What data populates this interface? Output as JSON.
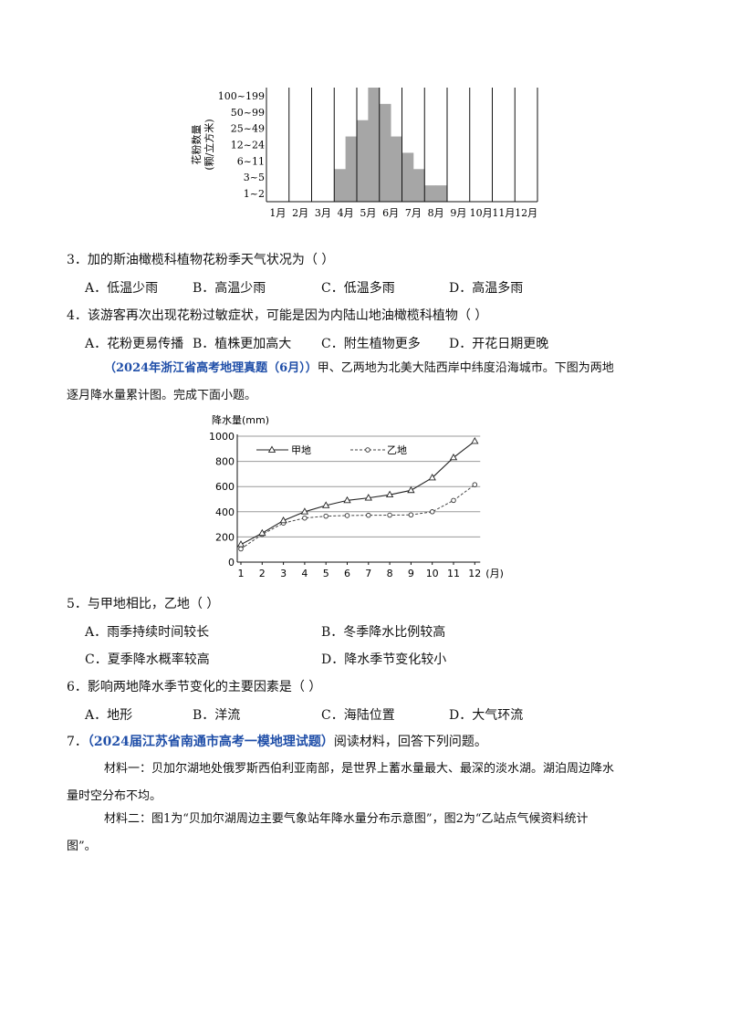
{
  "pollen_chart": {
    "type": "heatmap",
    "ylabel_line1": "花粉数量",
    "ylabel_line2": "(颗/立方米)",
    "y_levels": [
      "100~199",
      "50~99",
      "25~49",
      "12~24",
      "6~11",
      "3~5",
      "1~2"
    ],
    "months": [
      "1月",
      "2月",
      "3月",
      "4月",
      "5月",
      "6月",
      "7月",
      "8月",
      "9月",
      "10月",
      "11月",
      "12月"
    ],
    "half_month_levels": [
      0,
      0,
      0,
      0,
      0,
      0,
      2,
      4,
      5,
      7,
      6,
      4,
      3,
      2,
      1,
      1,
      0,
      0,
      0,
      0,
      0,
      0,
      0,
      0
    ]
  },
  "q3": {
    "stem": "3．加的斯油橄榄科植物花粉季天气状况为（    ）",
    "a": "A．低温少雨",
    "b": "B．高温少雨",
    "c": "C．低温多雨",
    "d": "D．高温多雨"
  },
  "q4": {
    "stem": "4．该游客再次出现花粉过敏症状，可能是因为内陆山地油橄榄科植物（    ）",
    "a": "A．花粉更易传播",
    "b": "B．植株更加高大",
    "c": "C．附生植物更多",
    "d": "D．开花日期更晚"
  },
  "intro56": {
    "source": "（2024年浙江省高考地理真题（6月））",
    "text1": "甲、乙两地为北美大陆西岸中纬度沿海城市。下图为两地",
    "text2": "逐月降水量累计图。完成下面小题。"
  },
  "rain_chart": {
    "type": "line",
    "ylabel": "降水量(mm)",
    "x_unit": "(月)",
    "x": [
      1,
      2,
      3,
      4,
      5,
      6,
      7,
      8,
      9,
      10,
      11,
      12
    ],
    "yticks": [
      0,
      200,
      400,
      600,
      800,
      1000
    ],
    "ylim": [
      0,
      1000
    ],
    "series": [
      {
        "name": "甲地",
        "values": [
          140,
          230,
          330,
          400,
          450,
          490,
          510,
          535,
          570,
          670,
          830,
          960
        ]
      },
      {
        "name": "乙地",
        "values": [
          105,
          220,
          310,
          350,
          365,
          370,
          372,
          373,
          375,
          400,
          490,
          615
        ]
      }
    ]
  },
  "q5": {
    "stem": "5．与甲地相比，乙地（    ）",
    "a": "A．雨季持续时间较长",
    "b": "B．冬季降水比例较高",
    "c": "C．夏季降水概率较高",
    "d": "D．降水季节变化较小"
  },
  "q6": {
    "stem": "6．影响两地降水季节变化的主要因素是（    ）",
    "a": "A．地形",
    "b": "B．洋流",
    "c": "C．海陆位置",
    "d": "D．大气环流"
  },
  "q7": {
    "num": "7．",
    "source": "（2024届江苏省南通市高考一模地理试题）",
    "text": "阅读材料，回答下列问题。",
    "m1_line1": "材料一：贝加尔湖地处俄罗斯西伯利亚南部，是世界上蓄水量最大、最深的淡水湖。湖泊周边降水",
    "m1_line2": "量时空分布不均。",
    "m2_line1": "材料二：图1为“贝加尔湖周边主要气象站年降水量分布示意图”，图2为“乙站点气候资料统计",
    "m2_line2": "图”。"
  }
}
